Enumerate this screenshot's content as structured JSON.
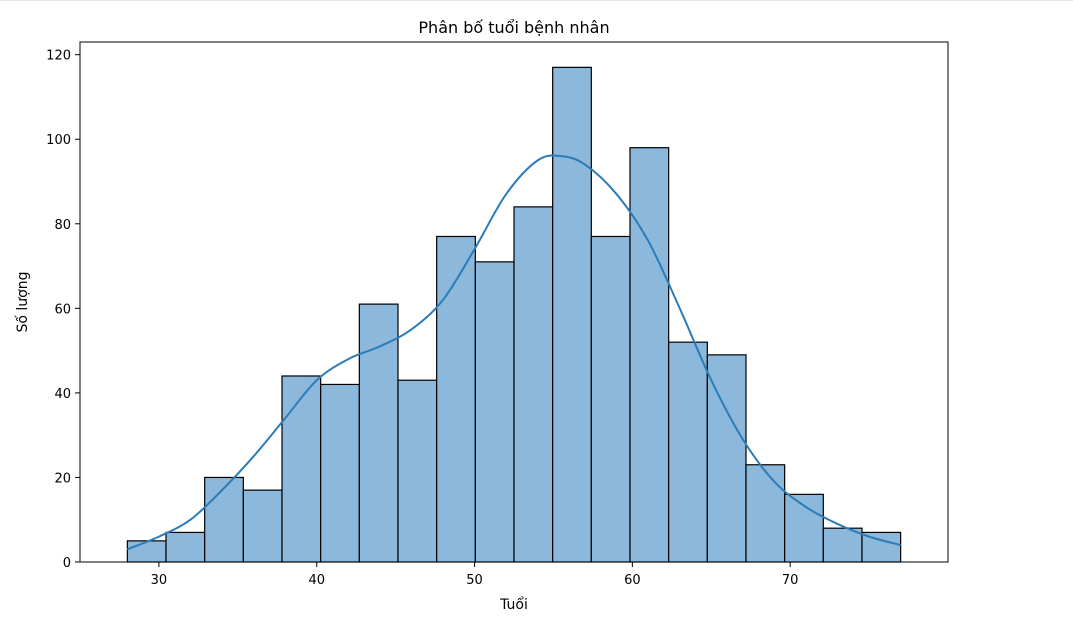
{
  "chart_data": {
    "type": "bar",
    "title": "Phân bố tuổi bệnh nhân",
    "xlabel": "Tuổi",
    "ylabel": "Số lượng",
    "xlim": [
      25,
      80
    ],
    "ylim": [
      0,
      123
    ],
    "xticks": [
      30,
      40,
      50,
      60,
      70
    ],
    "yticks": [
      0,
      20,
      40,
      60,
      80,
      100,
      120
    ],
    "grid": false,
    "bins": {
      "edges": [
        28,
        30.45,
        32.9,
        35.35,
        37.8,
        40.25,
        42.7,
        45.15,
        47.6,
        50.05,
        52.5,
        54.95,
        57.4,
        59.85,
        62.3,
        64.75,
        67.2,
        69.65,
        72.1,
        74.55,
        77
      ],
      "counts": [
        5,
        7,
        20,
        17,
        44,
        42,
        61,
        43,
        77,
        71,
        84,
        117,
        77,
        98,
        52,
        49,
        23,
        16,
        8,
        7
      ]
    },
    "kde": {
      "x": [
        28,
        30,
        32,
        34,
        36,
        38,
        40,
        42,
        44,
        46,
        48,
        50,
        52,
        54,
        55.5,
        57,
        59,
        61,
        63,
        65,
        67,
        69,
        71,
        73,
        75,
        77
      ],
      "y": [
        3,
        6,
        10,
        17,
        25,
        34,
        43,
        48,
        51,
        55,
        62,
        74,
        87,
        95,
        96,
        94,
        87,
        76,
        60,
        43,
        29,
        19,
        13,
        9,
        6,
        4
      ]
    },
    "colors": {
      "bar_fill": "#8cb8db",
      "bar_edge": "#000000",
      "kde_line": "#2b7cb8"
    }
  }
}
